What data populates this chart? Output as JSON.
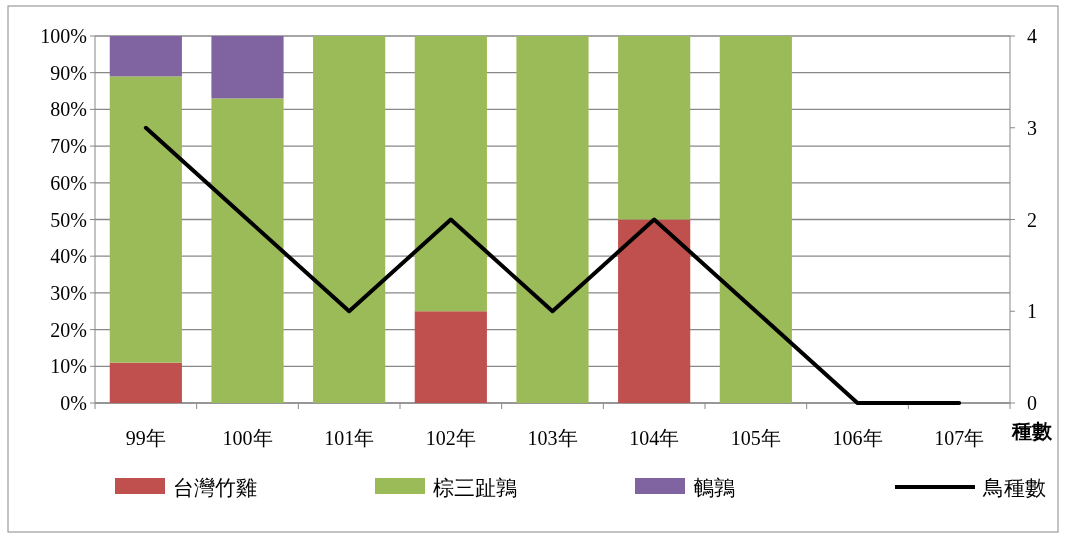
{
  "chart_data": {
    "type": "bar",
    "stacked": true,
    "grid": "y",
    "legend": "bottom",
    "categories": [
      "99年",
      "100年",
      "101年",
      "102年",
      "103年",
      "104年",
      "105年",
      "106年",
      "107年"
    ],
    "ylim": [
      0,
      100
    ],
    "yticks": [
      {
        "value": 0,
        "label": "0%"
      },
      {
        "value": 10,
        "label": "10%"
      },
      {
        "value": 20,
        "label": "20%"
      },
      {
        "value": 30,
        "label": "30%"
      },
      {
        "value": 40,
        "label": "40%"
      },
      {
        "value": 50,
        "label": "50%"
      },
      {
        "value": 60,
        "label": "60%"
      },
      {
        "value": 70,
        "label": "70%"
      },
      {
        "value": 80,
        "label": "80%"
      },
      {
        "value": 90,
        "label": "90%"
      },
      {
        "value": 100,
        "label": "100%"
      }
    ],
    "y2lim": [
      0,
      4
    ],
    "y2ticks": [
      0,
      1,
      2,
      3,
      4
    ],
    "y2label": "種數",
    "series": [
      {
        "name": "台灣竹雞",
        "color": "#c0504d",
        "values": [
          11,
          0,
          0,
          25,
          0,
          50,
          0,
          null,
          null
        ]
      },
      {
        "name": "棕三趾鶉",
        "color": "#9bbb59",
        "values": [
          78,
          83,
          100,
          75,
          100,
          50,
          100,
          null,
          null
        ]
      },
      {
        "name": "鵪鶉",
        "color": "#8064a2",
        "values": [
          11,
          17,
          0,
          0,
          0,
          0,
          0,
          null,
          null
        ]
      },
      {
        "name": "鳥種數",
        "type": "line",
        "axis": "y2",
        "color": "#000000",
        "values": [
          3,
          2,
          1,
          2,
          1,
          2,
          1,
          0,
          0
        ]
      }
    ]
  }
}
